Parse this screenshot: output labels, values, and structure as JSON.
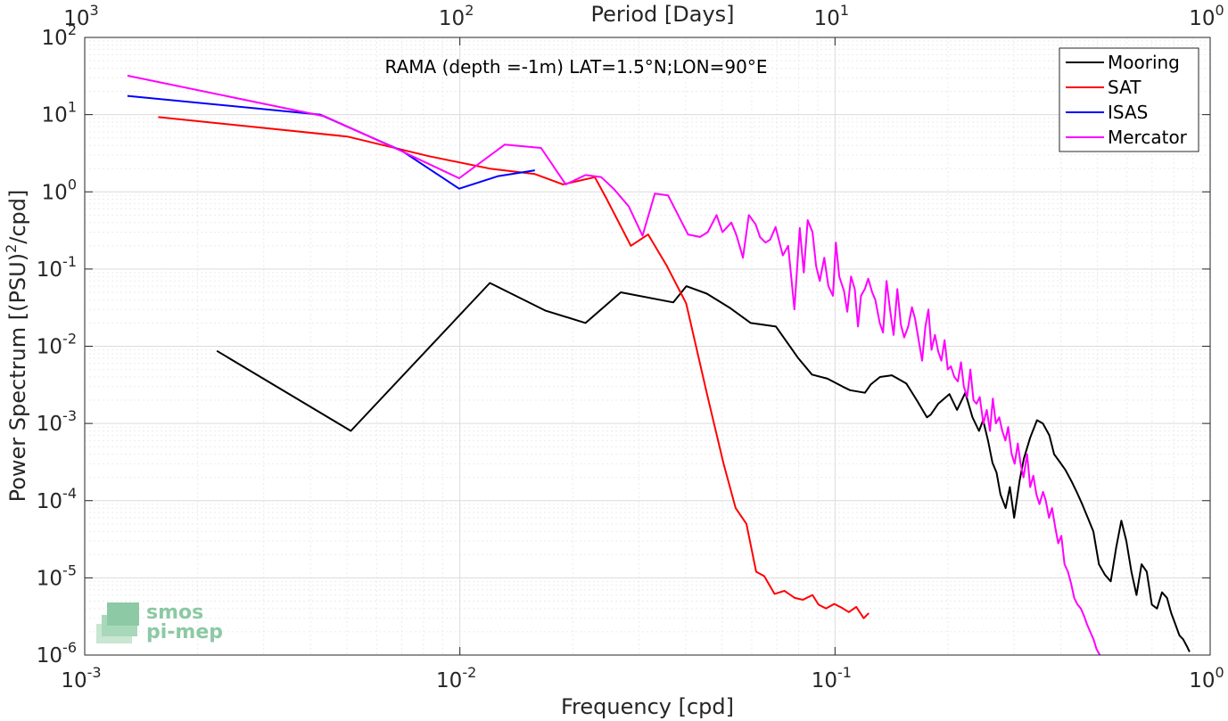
{
  "chart_data": {
    "type": "line",
    "title": "RAMA (depth =-1m) LAT=1.5°N;LON=90°E",
    "xlabel": "Frequency [cpd]",
    "ylabel_main": "Power Spectrum [(PSU)",
    "ylabel_sup": "2",
    "ylabel_tail": "/cpd]",
    "top_xlabel": "Period [Days]",
    "x_scale": "log",
    "y_scale": "log",
    "xlim": [
      0.001,
      1
    ],
    "ylim": [
      1e-06,
      100
    ],
    "grid": true,
    "legend_position": "top-right",
    "x_ticks": [
      {
        "value": 0.001,
        "base": "10",
        "exp": "-3"
      },
      {
        "value": 0.01,
        "base": "10",
        "exp": "-2"
      },
      {
        "value": 0.1,
        "base": "10",
        "exp": "-1"
      },
      {
        "value": 1,
        "base": "10",
        "exp": "0"
      }
    ],
    "y_ticks": [
      {
        "value": 100,
        "base": "10",
        "exp": "2"
      },
      {
        "value": 10,
        "base": "10",
        "exp": "1"
      },
      {
        "value": 1,
        "base": "10",
        "exp": "0"
      },
      {
        "value": 0.1,
        "base": "10",
        "exp": "-1"
      },
      {
        "value": 0.01,
        "base": "10",
        "exp": "-2"
      },
      {
        "value": 0.001,
        "base": "10",
        "exp": "-3"
      },
      {
        "value": 0.0001,
        "base": "10",
        "exp": "-4"
      },
      {
        "value": 1e-05,
        "base": "10",
        "exp": "-5"
      },
      {
        "value": 1e-06,
        "base": "10",
        "exp": "-6"
      }
    ],
    "top_ticks": [
      {
        "value": 0.001,
        "base": "10",
        "exp": "3"
      },
      {
        "value": 0.01,
        "base": "10",
        "exp": "2"
      },
      {
        "value": 0.1,
        "base": "10",
        "exp": "1"
      },
      {
        "value": 1,
        "base": "10",
        "exp": "0"
      }
    ],
    "series": [
      {
        "name": "Mooring",
        "color": "#000000",
        "x": [
          0.00225,
          0.00512,
          0.01202,
          0.01688,
          0.02163,
          0.02685,
          0.03707,
          0.04014,
          0.04552,
          0.05263,
          0.0596,
          0.0696,
          0.0798,
          0.0868,
          0.0955,
          0.1048,
          0.1096,
          0.1202,
          0.1245,
          0.1318,
          0.1418,
          0.1548,
          0.1652,
          0.1758,
          0.1799,
          0.1884,
          0.2018,
          0.2115,
          0.2225,
          0.2325,
          0.242,
          0.2482,
          0.2558,
          0.2628,
          0.2695,
          0.2762,
          0.285,
          0.2925,
          0.3003,
          0.3105,
          0.3187,
          0.3312,
          0.3454,
          0.3581,
          0.3728,
          0.3838,
          0.3967,
          0.4113,
          0.4265,
          0.4407,
          0.456,
          0.4718,
          0.4882,
          0.5052,
          0.5239,
          0.5432,
          0.562,
          0.5796,
          0.5979,
          0.6167,
          0.6363,
          0.6566,
          0.6776,
          0.6992,
          0.7215,
          0.7441,
          0.7674,
          0.7872,
          0.8076,
          0.8278,
          0.8474,
          0.8669,
          0.881
        ],
        "y": [
          0.0087,
          0.0008,
          0.066,
          0.029,
          0.02,
          0.05,
          0.037,
          0.06,
          0.048,
          0.031,
          0.02,
          0.018,
          0.007,
          0.0043,
          0.0038,
          0.003,
          0.0027,
          0.0025,
          0.0032,
          0.004,
          0.0042,
          0.0033,
          0.002,
          0.0012,
          0.0013,
          0.0018,
          0.0024,
          0.0015,
          0.0025,
          0.0012,
          0.0008,
          0.0011,
          0.0006,
          0.00031,
          0.00023,
          0.00012,
          8e-05,
          0.00015,
          6e-05,
          0.00018,
          0.00035,
          0.00065,
          0.0011,
          0.001,
          0.0007,
          0.0004,
          0.00032,
          0.00025,
          0.00018,
          0.00013,
          9e-05,
          6e-05,
          4e-05,
          1.5e-05,
          1.1e-05,
          9e-06,
          2.5e-05,
          5.5e-05,
          3e-05,
          1.2e-05,
          6e-06,
          1.5e-05,
          1.2e-05,
          4.5e-06,
          4e-06,
          6.5e-06,
          5.5e-06,
          3.5e-06,
          2.5e-06,
          1.8e-06,
          1.6e-06,
          1.3e-06,
          1.1e-06
        ]
      },
      {
        "name": "SAT",
        "color": "#ff0000",
        "x": [
          0.00157,
          0.00501,
          0.00826,
          0.01202,
          0.01585,
          0.01883,
          0.02289,
          0.02449,
          0.02856,
          0.03177,
          0.03562,
          0.04011,
          0.04557,
          0.05047,
          0.05434,
          0.05805,
          0.06163,
          0.06478,
          0.069,
          0.07329,
          0.07813,
          0.08211,
          0.0871,
          0.09033,
          0.09462,
          0.09953,
          0.1042,
          0.10886,
          0.11396,
          0.11923,
          0.12301
        ],
        "y": [
          9.3,
          5.2,
          2.9,
          2.0,
          1.7,
          1.25,
          1.55,
          0.85,
          0.2,
          0.28,
          0.11,
          0.036,
          0.0024,
          0.0003,
          8e-05,
          5e-05,
          1.2e-05,
          1.05e-05,
          6.2e-06,
          6.8e-06,
          5.5e-06,
          5.2e-06,
          6e-06,
          4.5e-06,
          4e-06,
          4.6e-06,
          4.1e-06,
          3.6e-06,
          4.2e-06,
          3e-06,
          3.5e-06
        ]
      },
      {
        "name": "ISAS",
        "color": "#0000ff",
        "x": [
          0.0013,
          0.00424,
          0.007,
          0.00996,
          0.01266,
          0.01585
        ],
        "y": [
          17.5,
          10.0,
          3.4,
          1.1,
          1.6,
          1.9
        ]
      },
      {
        "name": "Mercator",
        "color": "#ff00ff",
        "x": [
          0.0013,
          0.00437,
          0.00696,
          0.00996,
          0.01318,
          0.01646,
          0.01915,
          0.02163,
          0.02382,
          0.02568,
          0.02819,
          0.03068,
          0.03309,
          0.03589,
          0.03843,
          0.04057,
          0.04366,
          0.04578,
          0.04832,
          0.05015,
          0.05292,
          0.05466,
          0.05682,
          0.05891,
          0.06141,
          0.06311,
          0.06529,
          0.06715,
          0.06943,
          0.07257,
          0.07502,
          0.07793,
          0.08054,
          0.08253,
          0.08455,
          0.08712,
          0.08901,
          0.09105,
          0.09365,
          0.09602,
          0.09874,
          0.10054,
          0.10265,
          0.10566,
          0.1078,
          0.11034,
          0.11291,
          0.11517,
          0.11728,
          0.12005,
          0.12262,
          0.12562,
          0.12804,
          0.13161,
          0.1343,
          0.13722,
          0.14017,
          0.14325,
          0.14661,
          0.14979,
          0.15291,
          0.15674,
          0.16032,
          0.16334,
          0.16707,
          0.17071,
          0.17414,
          0.17744,
          0.18082,
          0.18467,
          0.18841,
          0.19213,
          0.19589,
          0.19985,
          0.20372,
          0.20791,
          0.21252,
          0.21668,
          0.22045,
          0.22508,
          0.22947,
          0.23396,
          0.23838,
          0.24312,
          0.24862,
          0.25381,
          0.25891,
          0.26346,
          0.26838,
          0.27407,
          0.27925,
          0.2846,
          0.28938,
          0.29572,
          0.30118,
          0.30707,
          0.31236,
          0.31803,
          0.32509,
          0.33136,
          0.33781,
          0.34437,
          0.35075,
          0.35854,
          0.36469,
          0.37199,
          0.3788,
          0.3865,
          0.39343,
          0.40113,
          0.40917,
          0.41765,
          0.42577,
          0.43428,
          0.44317,
          0.4521,
          0.4613,
          0.4695,
          0.4788,
          0.48878,
          0.4977,
          0.50822
        ],
        "y": [
          32.0,
          9.5,
          3.4,
          1.5,
          4.1,
          3.7,
          1.25,
          1.65,
          1.55,
          1.1,
          0.65,
          0.27,
          0.95,
          0.9,
          0.47,
          0.28,
          0.26,
          0.3,
          0.5,
          0.3,
          0.4,
          0.27,
          0.14,
          0.5,
          0.38,
          0.26,
          0.22,
          0.24,
          0.35,
          0.15,
          0.2,
          0.03,
          0.34,
          0.09,
          0.43,
          0.3,
          0.11,
          0.07,
          0.14,
          0.06,
          0.045,
          0.22,
          0.08,
          0.052,
          0.028,
          0.08,
          0.055,
          0.018,
          0.045,
          0.055,
          0.075,
          0.05,
          0.04,
          0.02,
          0.015,
          0.07,
          0.03,
          0.014,
          0.055,
          0.019,
          0.013,
          0.018,
          0.032,
          0.023,
          0.012,
          0.0065,
          0.018,
          0.03,
          0.009,
          0.014,
          0.0085,
          0.0065,
          0.012,
          0.005,
          0.0055,
          0.004,
          0.0035,
          0.0062,
          0.003,
          0.0022,
          0.005,
          0.002,
          0.0018,
          0.0022,
          0.001,
          0.0015,
          0.0008,
          0.0021,
          0.001,
          0.0012,
          0.0008,
          0.0006,
          0.0009,
          0.0004,
          0.0003,
          0.00055,
          0.0003,
          0.0002,
          0.0004,
          0.00015,
          0.00021,
          0.00012,
          9e-05,
          0.00013,
          0.0001,
          6e-05,
          8e-05,
          4.5e-05,
          2.8e-05,
          3.5e-05,
          1.5e-05,
          1.2e-05,
          8.5e-06,
          5.5e-06,
          4.5e-06,
          4e-06,
          3.2e-06,
          2.5e-06,
          2e-06,
          1.6e-06,
          1.2e-06,
          1e-06
        ]
      }
    ]
  },
  "logo": {
    "line1": "smos",
    "line2": "pi-mep"
  }
}
